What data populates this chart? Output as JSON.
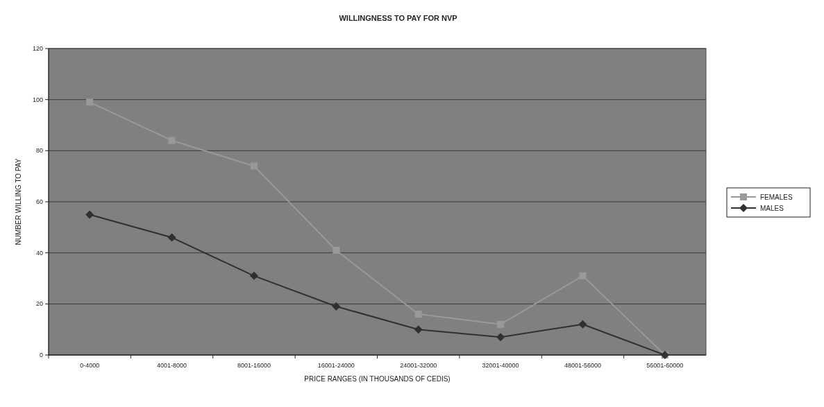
{
  "chart_data": {
    "type": "line",
    "title": "WILLINGNESS TO PAY FOR NVP",
    "xlabel": "PRICE RANGES (IN THOUSANDS OF CEDIS)",
    "ylabel": "NUMBER WILLING TO PAY",
    "categories": [
      "0-4000",
      "4001-8000",
      "8001-16000",
      "16001-24000",
      "24001-32000",
      "32001-40000",
      "48001-56000",
      "56001-60000"
    ],
    "series": [
      {
        "name": "FEMALES",
        "color": "#999999",
        "marker": "square",
        "values": [
          99,
          84,
          74,
          41,
          16,
          12,
          31,
          0
        ]
      },
      {
        "name": "MALES",
        "color": "#303030",
        "marker": "diamond",
        "values": [
          55,
          46,
          31,
          19,
          10,
          7,
          12,
          0
        ]
      }
    ],
    "ylim": [
      0,
      120
    ],
    "yticks": [
      0,
      20,
      40,
      60,
      80,
      100,
      120
    ],
    "grid": "y",
    "legend": "right"
  }
}
